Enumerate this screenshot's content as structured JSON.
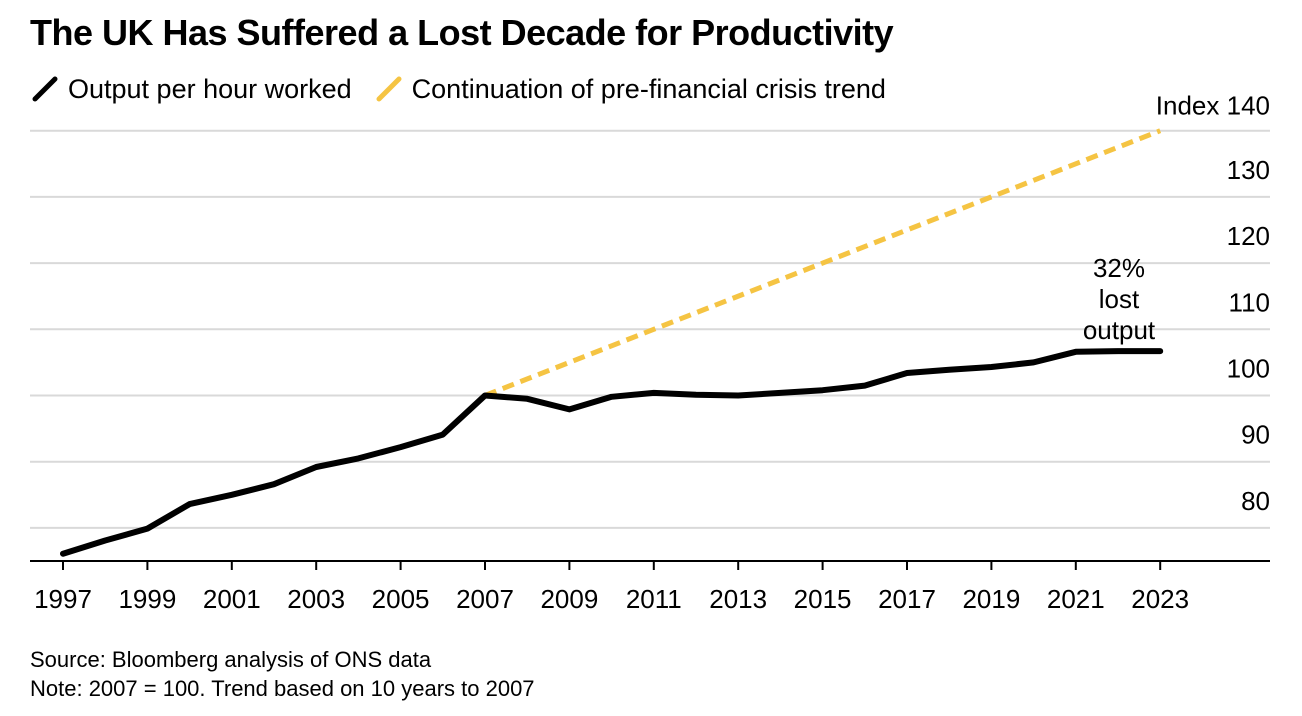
{
  "title": "The UK Has Suffered a Lost Decade for Productivity",
  "legend": [
    {
      "label": "Output per hour worked",
      "color": "#000000",
      "style": "solid"
    },
    {
      "label": "Continuation of pre-financial crisis trend",
      "color": "#F5C443",
      "style": "dashed"
    }
  ],
  "annotation": [
    "32%",
    "lost",
    "output"
  ],
  "footer": {
    "source": "Source: Bloomberg analysis of ONS data",
    "note": "Note: 2007 = 100. Trend based on 10 years to 2007"
  },
  "chart_data": {
    "type": "line",
    "x_ticks": [
      "1997",
      "1999",
      "2001",
      "2003",
      "2005",
      "2007",
      "2009",
      "2011",
      "2013",
      "2015",
      "2017",
      "2019",
      "2021",
      "2023"
    ],
    "y_ticks": [
      80,
      90,
      100,
      110,
      120,
      130,
      140
    ],
    "y_top_tick_label": "Index 140",
    "xlim": [
      1996.2,
      2025.5
    ],
    "ylim": [
      75,
      140
    ],
    "grid": true,
    "legend_position": "top-left",
    "series": [
      {
        "name": "Output per hour worked",
        "color": "#000000",
        "dashed": false,
        "x": [
          1997,
          1998,
          1999,
          2000,
          2001,
          2002,
          2003,
          2004,
          2005,
          2006,
          2007,
          2008,
          2009,
          2010,
          2011,
          2012,
          2013,
          2014,
          2015,
          2016,
          2017,
          2018,
          2019,
          2020,
          2021,
          2022,
          2023
        ],
        "y": [
          76.1,
          78.1,
          79.9,
          83.6,
          85.0,
          86.6,
          89.2,
          90.5,
          92.2,
          94.1,
          100.0,
          99.5,
          97.9,
          99.8,
          100.4,
          100.1,
          100.0,
          100.4,
          100.8,
          101.5,
          103.4,
          103.9,
          104.3,
          105.0,
          106.6,
          106.7,
          106.7
        ]
      },
      {
        "name": "Continuation of pre-financial crisis trend",
        "color": "#F5C443",
        "dashed": true,
        "x": [
          2007,
          2023
        ],
        "y": [
          100.0,
          140.0
        ]
      }
    ]
  }
}
